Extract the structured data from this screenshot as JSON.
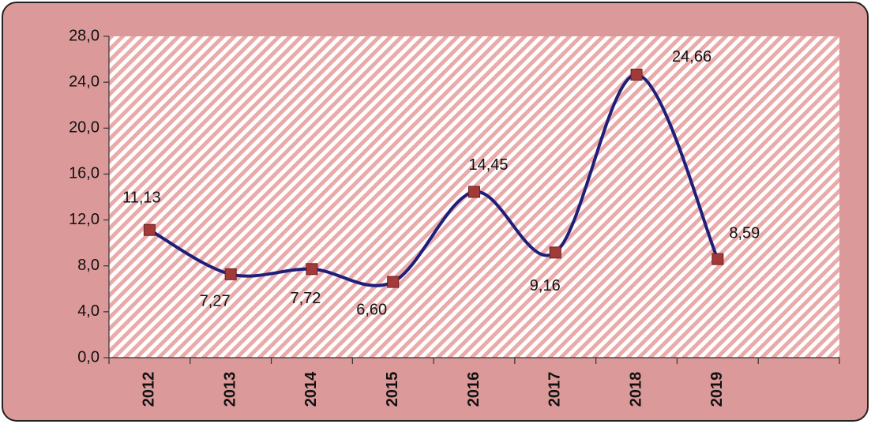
{
  "chart_data": {
    "type": "line",
    "categories": [
      "2012",
      "2013",
      "2014",
      "2015",
      "2016",
      "2017",
      "2018",
      "2019",
      null
    ],
    "values": [
      11.13,
      7.27,
      7.72,
      6.6,
      14.45,
      9.16,
      24.66,
      8.59,
      null
    ],
    "value_labels": [
      "11,13",
      "7,27",
      "7,72",
      "6,60",
      "14,45",
      "9,16",
      "24,66",
      "8,59",
      null
    ],
    "color": "#1f1f7a",
    "marker_color": "#a33a3a",
    "smooth": true,
    "ylim": [
      0,
      28
    ],
    "yticks": [
      {
        "value": 0,
        "label": "0,0"
      },
      {
        "value": 4,
        "label": "4,0"
      },
      {
        "value": 8,
        "label": "8,0"
      },
      {
        "value": 12,
        "label": "12,0"
      },
      {
        "value": 16,
        "label": "16,0"
      },
      {
        "value": 20,
        "label": "20,0"
      },
      {
        "value": 24,
        "label": "24,0"
      },
      {
        "value": 28,
        "label": "28,0"
      }
    ],
    "grid": false
  }
}
